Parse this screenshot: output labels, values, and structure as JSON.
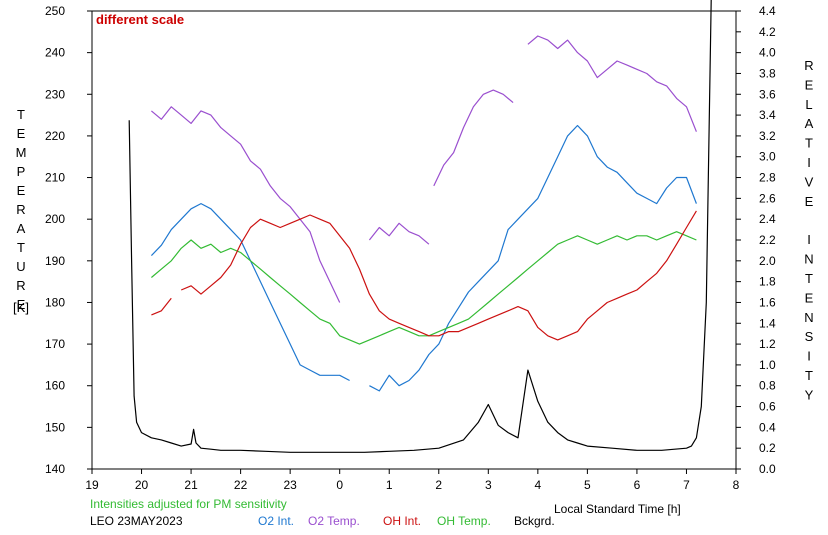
{
  "chart_data": {
    "type": "line",
    "title": "",
    "annotation": "different scale",
    "annotation_color": "#cc0000",
    "xlabel": "Local Standard Time [h]",
    "ylabel_left": "TEMPERATURE",
    "ylabel_left_unit": "[K]",
    "ylabel_right": "RELATIVE INTENSITY",
    "xlim": [
      19,
      32
    ],
    "ylim_left": [
      140,
      250
    ],
    "ylim_right": [
      0.0,
      4.4
    ],
    "x_ticks": [
      19,
      20,
      21,
      22,
      23,
      24,
      25,
      26,
      27,
      28,
      29,
      30,
      31,
      32
    ],
    "x_tick_labels": [
      "19",
      "20",
      "21",
      "22",
      "23",
      "0",
      "1",
      "2",
      "3",
      "4",
      "5",
      "6",
      "7",
      "8"
    ],
    "y_left_ticks": [
      "140",
      "150",
      "160",
      "170",
      "180",
      "190",
      "200",
      "210",
      "220",
      "230",
      "240",
      "250"
    ],
    "y_right_ticks": [
      "0.0",
      "0.2",
      "0.4",
      "0.6",
      "0.8",
      "1.0",
      "1.2",
      "1.4",
      "1.6",
      "1.8",
      "2.0",
      "2.2",
      "2.4",
      "2.6",
      "2.8",
      "3.0",
      "3.2",
      "3.4",
      "3.6",
      "3.8",
      "4.0",
      "4.2",
      "4.4"
    ],
    "grid": false,
    "series": [
      {
        "name": "O2 Temp.",
        "axis": "left",
        "color": "#9a4fcf",
        "x": [
          20.2,
          20.4,
          20.6,
          20.8,
          21.0,
          21.2,
          21.4,
          21.6,
          21.8,
          22.0,
          22.2,
          22.4,
          22.6,
          22.8,
          23.0,
          23.2,
          23.4,
          23.6,
          23.8,
          24.0,
          null,
          24.6,
          24.8,
          25.0,
          25.2,
          25.4,
          25.6,
          25.8,
          null,
          25.9,
          26.1,
          26.3,
          26.5,
          26.7,
          26.9,
          27.1,
          27.3,
          27.5,
          null,
          27.8,
          28.0,
          28.2,
          28.4,
          28.6,
          28.8,
          29.0,
          29.2,
          29.4,
          29.6,
          29.8,
          30.0,
          30.2,
          30.4,
          30.6,
          30.8,
          31.0,
          31.2
        ],
        "y": [
          226,
          224,
          227,
          225,
          223,
          226,
          225,
          222,
          220,
          218,
          214,
          212,
          208,
          205,
          203,
          200,
          197,
          190,
          185,
          180,
          null,
          195,
          198,
          196,
          199,
          197,
          196,
          194,
          null,
          208,
          213,
          216,
          222,
          227,
          230,
          231,
          230,
          228,
          null,
          242,
          244,
          243,
          241,
          243,
          240,
          238,
          234,
          236,
          238,
          237,
          236,
          235,
          233,
          232,
          229,
          227,
          221
        ]
      },
      {
        "name": "O2 Int.",
        "axis": "right",
        "color": "#1f78d0",
        "x": [
          20.2,
          20.4,
          20.6,
          20.8,
          21.0,
          21.2,
          21.4,
          21.6,
          21.8,
          22.0,
          22.2,
          22.4,
          22.6,
          22.8,
          23.0,
          23.2,
          23.4,
          23.6,
          23.8,
          24.0,
          24.2,
          null,
          24.6,
          24.8,
          25.0,
          25.2,
          25.4,
          25.6,
          25.8,
          26.0,
          26.2,
          26.4,
          26.6,
          26.8,
          27.0,
          27.2,
          27.4,
          27.6,
          27.8,
          28.0,
          28.2,
          28.4,
          28.6,
          28.8,
          29.0,
          29.2,
          29.4,
          29.6,
          29.8,
          30.0,
          30.2,
          30.4,
          30.6,
          30.8,
          31.0,
          31.2
        ],
        "y": [
          2.05,
          2.15,
          2.3,
          2.4,
          2.5,
          2.55,
          2.5,
          2.4,
          2.3,
          2.2,
          2.0,
          1.8,
          1.6,
          1.4,
          1.2,
          1.0,
          0.95,
          0.9,
          0.9,
          0.9,
          0.85,
          null,
          0.8,
          0.75,
          0.9,
          0.8,
          0.85,
          0.95,
          1.1,
          1.2,
          1.4,
          1.55,
          1.7,
          1.8,
          1.9,
          2.0,
          2.3,
          2.4,
          2.5,
          2.6,
          2.8,
          3.0,
          3.2,
          3.3,
          3.2,
          3.0,
          2.9,
          2.85,
          2.75,
          2.65,
          2.6,
          2.55,
          2.7,
          2.8,
          2.8,
          2.55
        ]
      },
      {
        "name": "OH Temp.",
        "axis": "left",
        "color": "#33bb33",
        "x": [
          20.2,
          20.4,
          20.6,
          20.8,
          21.0,
          21.2,
          21.4,
          21.6,
          21.8,
          22.0,
          22.2,
          22.4,
          22.6,
          22.8,
          23.0,
          23.2,
          23.4,
          23.6,
          23.8,
          24.0,
          24.2,
          24.4,
          24.6,
          24.8,
          25.0,
          25.2,
          25.4,
          25.6,
          25.8,
          26.0,
          26.2,
          26.4,
          26.6,
          26.8,
          27.0,
          27.2,
          27.4,
          27.6,
          27.8,
          28.0,
          28.2,
          28.4,
          28.6,
          28.8,
          29.0,
          29.2,
          29.4,
          29.6,
          29.8,
          30.0,
          30.2,
          30.4,
          30.6,
          30.8,
          31.0,
          31.2
        ],
        "y": [
          186,
          188,
          190,
          193,
          195,
          193,
          194,
          192,
          193,
          192,
          190,
          188,
          186,
          184,
          182,
          180,
          178,
          176,
          175,
          172,
          171,
          170,
          171,
          172,
          173,
          174,
          173,
          172,
          172,
          173,
          174,
          175,
          176,
          178,
          180,
          182,
          184,
          186,
          188,
          190,
          192,
          194,
          195,
          196,
          195,
          194,
          195,
          196,
          195,
          196,
          196,
          195,
          196,
          197,
          196,
          195
        ]
      },
      {
        "name": "OH Int.",
        "axis": "left",
        "color": "#cc1111",
        "x": [
          20.2,
          20.4,
          20.6,
          null,
          20.8,
          21.0,
          21.2,
          21.4,
          21.6,
          21.8,
          22.0,
          22.2,
          22.4,
          22.6,
          22.8,
          23.0,
          23.2,
          23.4,
          23.6,
          23.8,
          24.0,
          24.2,
          24.4,
          24.6,
          24.8,
          25.0,
          25.2,
          25.4,
          25.6,
          25.8,
          26.0,
          26.2,
          26.4,
          26.6,
          26.8,
          27.0,
          27.2,
          27.4,
          27.6,
          27.8,
          28.0,
          28.2,
          28.4,
          28.6,
          28.8,
          29.0,
          29.2,
          29.4,
          29.6,
          29.8,
          30.0,
          30.2,
          30.4,
          30.6,
          30.8,
          31.0,
          31.2
        ],
        "y": [
          177,
          178,
          181,
          null,
          183,
          184,
          182,
          184,
          186,
          189,
          194,
          198,
          200,
          199,
          198,
          199,
          200,
          201,
          200,
          199,
          196,
          193,
          188,
          182,
          178,
          176,
          175,
          174,
          173,
          172,
          172,
          173,
          173,
          174,
          175,
          176,
          177,
          178,
          179,
          178,
          174,
          172,
          171,
          172,
          173,
          176,
          178,
          180,
          181,
          182,
          183,
          185,
          187,
          190,
          194,
          198,
          202
        ]
      },
      {
        "name": "Bckgrd.",
        "axis": "right",
        "color": "#000000",
        "x": [
          19.75,
          19.8,
          19.85,
          19.9,
          20.0,
          20.2,
          20.4,
          20.6,
          20.8,
          21.0,
          21.05,
          21.1,
          21.2,
          21.4,
          21.6,
          21.8,
          22.0,
          22.5,
          23.0,
          23.5,
          24.0,
          24.5,
          25.0,
          25.5,
          26.0,
          26.5,
          26.8,
          27.0,
          27.2,
          27.4,
          27.6,
          27.8,
          28.0,
          28.2,
          28.4,
          28.6,
          28.8,
          29.0,
          29.5,
          30.0,
          30.5,
          31.0,
          31.1,
          31.2,
          31.3,
          31.4,
          31.5
        ],
        "y": [
          3.35,
          2.0,
          0.7,
          0.45,
          0.35,
          0.3,
          0.28,
          0.25,
          0.22,
          0.24,
          0.38,
          0.25,
          0.2,
          0.19,
          0.18,
          0.18,
          0.18,
          0.17,
          0.16,
          0.16,
          0.16,
          0.16,
          0.17,
          0.18,
          0.2,
          0.28,
          0.45,
          0.62,
          0.42,
          0.35,
          0.3,
          0.95,
          0.65,
          0.45,
          0.35,
          0.28,
          0.25,
          0.22,
          0.2,
          0.18,
          0.18,
          0.2,
          0.22,
          0.3,
          0.6,
          1.6,
          4.6
        ]
      }
    ]
  },
  "footer": {
    "note": "Intensities adjusted for PM sensitivity",
    "note_color": "#33bb33",
    "station": "LEO 23MAY2023",
    "legend": [
      {
        "label": "O2 Int.",
        "color": "#1f78d0"
      },
      {
        "label": "O2 Temp.",
        "color": "#9a4fcf"
      },
      {
        "label": "OH Int.",
        "color": "#cc1111"
      },
      {
        "label": "OH Temp.",
        "color": "#33bb33"
      },
      {
        "label": "Bckgrd.",
        "color": "#000000"
      }
    ]
  }
}
